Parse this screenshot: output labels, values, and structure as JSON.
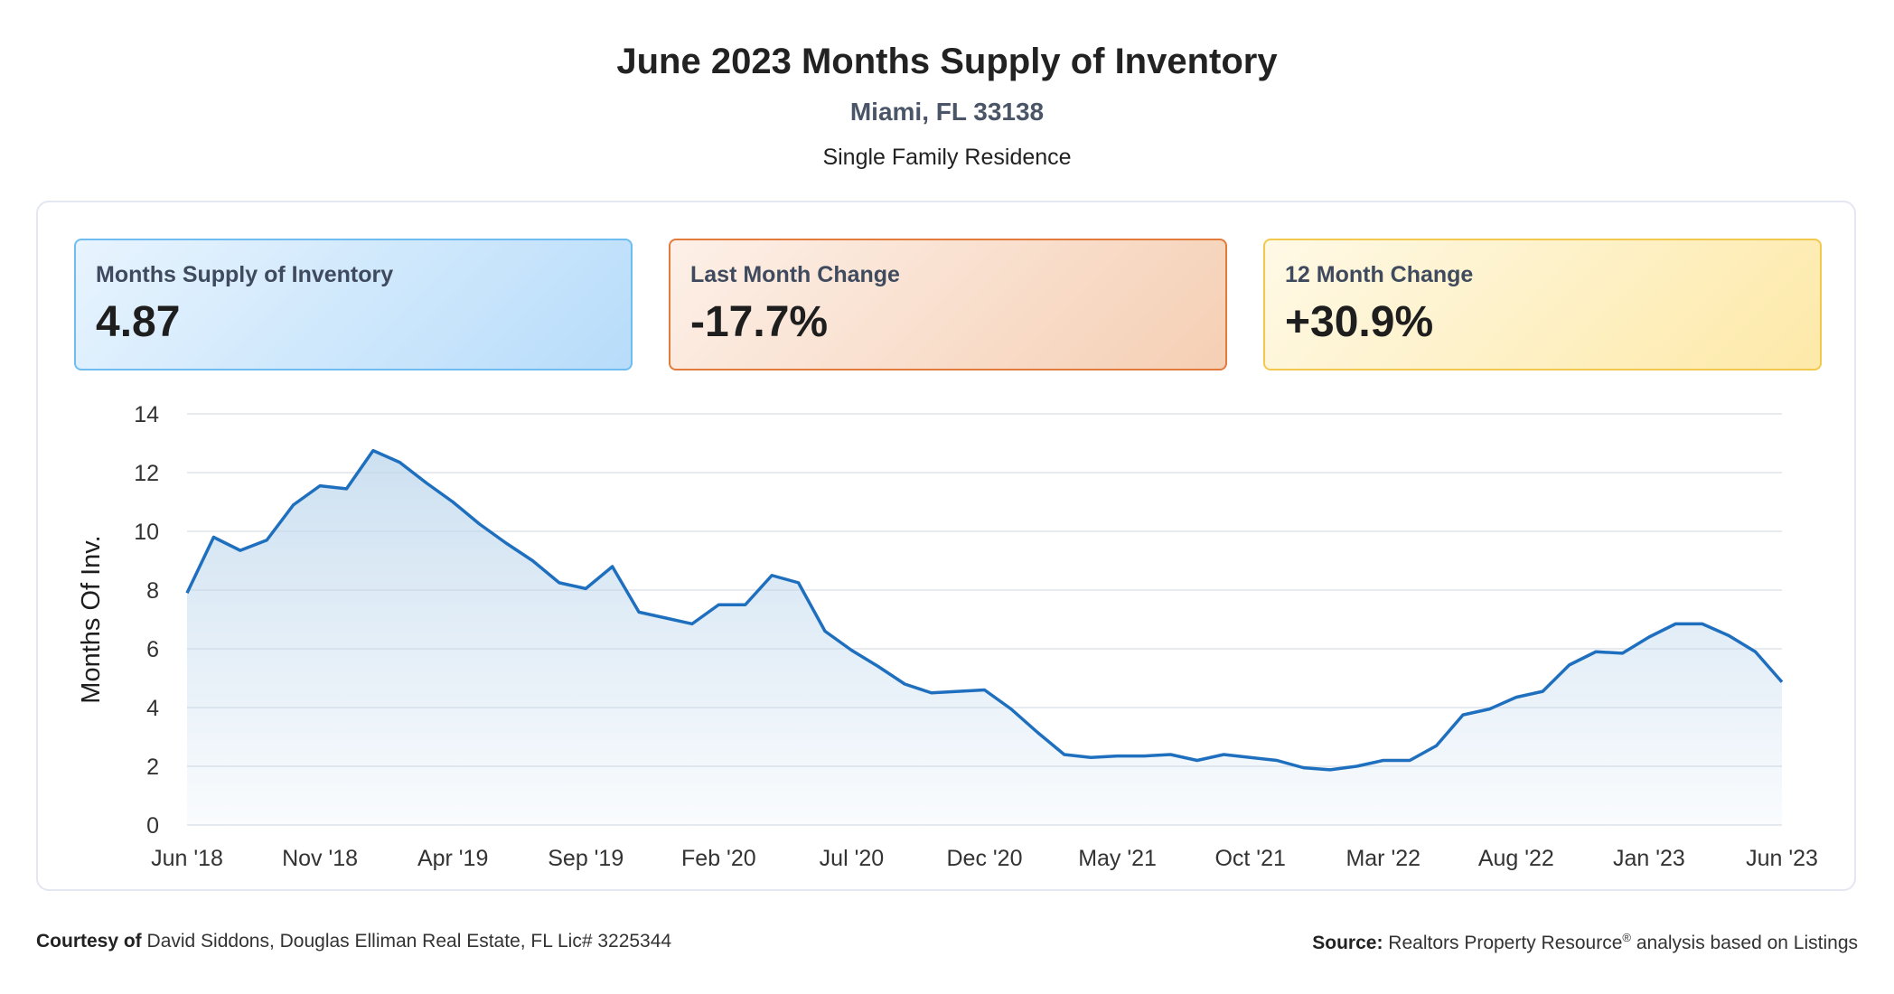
{
  "header": {
    "title": "June 2023 Months Supply of Inventory",
    "location": "Miami, FL 33138",
    "property_type": "Single Family Residence"
  },
  "cards": [
    {
      "label": "Months Supply of Inventory",
      "value": "4.87",
      "color": "#6fbdf0"
    },
    {
      "label": "Last Month Change",
      "value": "-17.7%",
      "color": "#e27b3c"
    },
    {
      "label": "12 Month Change",
      "value": "+30.9%",
      "color": "#f2c94c"
    }
  ],
  "footer": {
    "courtesy_label": "Courtesy of",
    "courtesy_text": "David Siddons, Douglas Elliman Real Estate, FL Lic# 3225344",
    "source_label": "Source:",
    "source_text_1": "Realtors Property Resource",
    "source_sup": "®",
    "source_text_2": "analysis based on Listings"
  },
  "chart_data": {
    "type": "area",
    "ylabel": "Months Of Inv.",
    "xlabel": "",
    "ylim": [
      0,
      14
    ],
    "yticks": [
      "0",
      "2",
      "4",
      "6",
      "8",
      "10",
      "12",
      "14"
    ],
    "xtick_labels": [
      "Jun '18",
      "Nov '18",
      "Apr '19",
      "Sep '19",
      "Feb '20",
      "Jul '20",
      "Dec '20",
      "May '21",
      "Oct '21",
      "Mar '22",
      "Aug '22",
      "Jan '23",
      "Jun '23"
    ],
    "grid": true,
    "line_color": "#1f6fbf",
    "fill_color": "#bcd6ec",
    "series": [
      {
        "x": [
          "Jun '18",
          "Jul '18",
          "Aug '18",
          "Sep '18",
          "Oct '18",
          "Nov '18",
          "Dec '18",
          "Jan '19",
          "Feb '19",
          "Mar '19",
          "Apr '19",
          "May '19",
          "Jun '19",
          "Jul '19",
          "Aug '19",
          "Sep '19",
          "Oct '19",
          "Nov '19",
          "Dec '19",
          "Jan '20",
          "Feb '20",
          "Mar '20",
          "Apr '20",
          "May '20",
          "Jun '20",
          "Jul '20",
          "Aug '20",
          "Sep '20",
          "Oct '20",
          "Nov '20",
          "Dec '20",
          "Jan '21",
          "Feb '21",
          "Mar '21",
          "Apr '21",
          "May '21",
          "Jun '21",
          "Jul '21",
          "Aug '21",
          "Sep '21",
          "Oct '21",
          "Nov '21",
          "Dec '21",
          "Jan '22",
          "Feb '22",
          "Mar '22",
          "Apr '22",
          "May '22",
          "Jun '22",
          "Jul '22",
          "Aug '22",
          "Sep '22",
          "Oct '22",
          "Nov '22",
          "Dec '22",
          "Jan '23",
          "Feb '23",
          "Mar '23",
          "Apr '23",
          "May '23",
          "Jun '23"
        ],
        "values": [
          7.9,
          9.8,
          9.35,
          9.7,
          10.9,
          11.55,
          11.45,
          12.75,
          12.35,
          11.65,
          11.0,
          10.25,
          9.6,
          9.0,
          8.25,
          8.05,
          8.8,
          7.25,
          7.05,
          6.85,
          7.5,
          7.5,
          8.5,
          8.25,
          6.6,
          5.95,
          5.4,
          4.8,
          4.5,
          4.55,
          4.6,
          3.95,
          3.15,
          2.4,
          2.3,
          2.35,
          2.35,
          2.4,
          2.2,
          2.4,
          2.3,
          2.2,
          1.95,
          1.88,
          2.0,
          2.2,
          2.2,
          2.7,
          3.75,
          3.95,
          4.35,
          4.55,
          5.45,
          5.9,
          5.85,
          6.4,
          6.85,
          6.85,
          6.45,
          5.9,
          4.87
        ]
      }
    ]
  }
}
